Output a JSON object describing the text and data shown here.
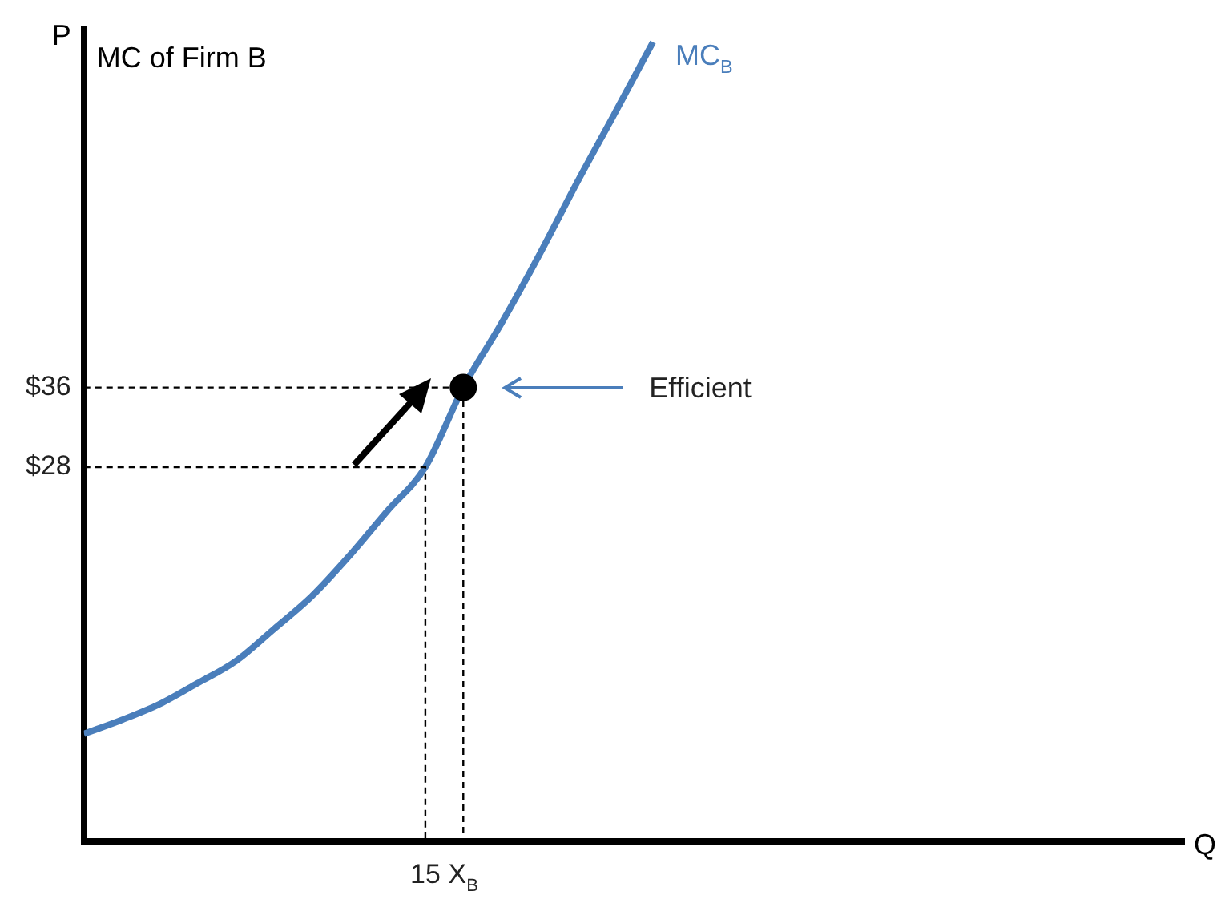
{
  "chart_data": {
    "type": "line",
    "title": "MC of Firm B",
    "xlabel": "Q",
    "ylabel": "P",
    "categories": [
      null,
      null,
      null,
      null,
      null,
      null,
      null,
      null,
      null,
      "15",
      "X$_{B}$",
      null,
      null,
      null,
      null,
      null,
      null,
      null,
      null,
      null,
      null,
      null,
      null,
      null,
      null,
      null,
      null,
      null,
      null,
      null
    ],
    "ylim": [
      -9.6,
      72
    ],
    "yticks": [
      {
        "value": 28,
        "label": "$28"
      },
      {
        "value": 36,
        "label": "$36"
      }
    ],
    "grid": false,
    "legend": false,
    "marker": "none",
    "line_style": "solid",
    "series": [
      {
        "name": "MC$_{B}$",
        "color": "#4a7ebb",
        "values": [
          1.2,
          2.6,
          4.2,
          6.3,
          8.5,
          11.7,
          15.0,
          19.1,
          23.6,
          28,
          36,
          42.4,
          49.3,
          56.6,
          63.6,
          70.7,
          null,
          null,
          null,
          null,
          null,
          null,
          null,
          null,
          null,
          null,
          null,
          null,
          null,
          null
        ]
      },
      {
        "type": "scatter",
        "color": "#000000",
        "marker": "circle",
        "x": [
          "X$_{B}$"
        ],
        "values": [
          36
        ]
      }
    ],
    "ref_lines": [
      {
        "axis": "y",
        "value": 36,
        "color": "#000000",
        "line_style": "dashed"
      },
      {
        "axis": "y",
        "value": 28,
        "color": "#000000",
        "line_style": "dashed"
      }
    ],
    "annotations": [
      "Efficient"
    ]
  }
}
